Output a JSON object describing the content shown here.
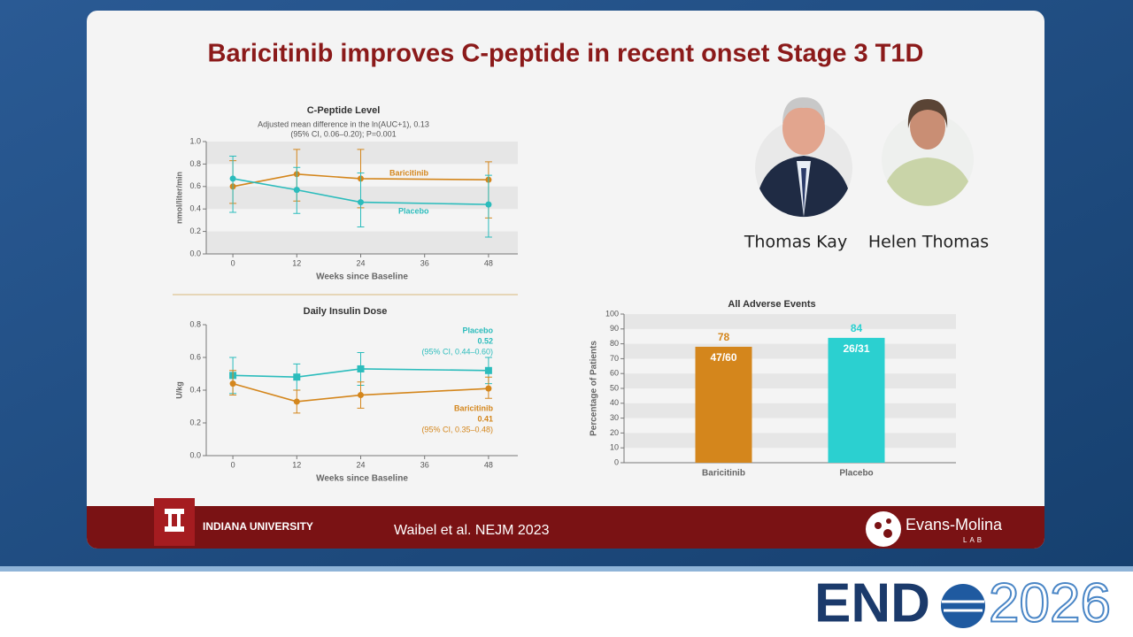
{
  "slide": {
    "title": "Baricitinib improves C-peptide in recent onset Stage 3 T1D",
    "people": [
      "Thomas Kay",
      "Helen Thomas"
    ],
    "footer": {
      "university": "INDIANA UNIVERSITY",
      "citation": "Waibel et al. NEJM 2023",
      "lab": "Evans-Molina",
      "lab_sub": "LAB"
    },
    "event": {
      "name": "END",
      "year": "2026"
    }
  },
  "chart_data": [
    {
      "type": "line",
      "title": "C-Peptide Level",
      "subtitle": [
        "Adjusted mean difference in the ln(AUC+1), 0.13",
        "(95% CI, 0.06–0.20); P=0.001"
      ],
      "xlabel": "Weeks since Baseline",
      "ylabel": "nmol/liter/min",
      "x": [
        0,
        12,
        24,
        48
      ],
      "xlim": [
        -5,
        53.5
      ],
      "xticks": [
        0,
        12,
        24,
        36,
        48
      ],
      "ylim": [
        0,
        1
      ],
      "yticks": [
        {
          "value": 0,
          "label": "0.0"
        },
        0.2,
        0.4,
        0.6,
        0.8,
        {
          "value": 1,
          "label": "1.0"
        }
      ],
      "grid": true,
      "series": [
        {
          "name": "Baricitinib",
          "color": "#d4861c",
          "marker": "circle",
          "values": [
            0.6,
            0.71,
            0.67,
            0.66
          ],
          "lower": [
            0.45,
            0.47,
            0.41,
            0.32
          ],
          "upper": [
            0.83,
            0.93,
            0.93,
            0.82
          ]
        },
        {
          "name": "Placebo",
          "color": "#2bbcbc",
          "marker": "circle",
          "values": [
            0.67,
            0.57,
            0.46,
            0.44
          ],
          "lower": [
            0.37,
            0.36,
            0.24,
            0.15
          ],
          "upper": [
            0.87,
            0.77,
            0.72,
            0.7
          ]
        }
      ]
    },
    {
      "type": "line",
      "title": "Daily Insulin Dose",
      "xlabel": "Weeks since Baseline",
      "ylabel": "U/kg",
      "x": [
        0,
        12,
        24,
        48
      ],
      "xlim": [
        -5,
        53.5
      ],
      "xticks": [
        0,
        12,
        24,
        36,
        48
      ],
      "ylim": [
        0,
        0.8
      ],
      "yticks": [
        {
          "value": 0,
          "label": "0.0"
        },
        0.2,
        0.4,
        0.6,
        0.8
      ],
      "grid": false,
      "series": [
        {
          "name": "Placebo",
          "color": "#2bbcbc",
          "marker": "square",
          "values": [
            0.49,
            0.48,
            0.53,
            0.52
          ],
          "lower": [
            0.38,
            0.4,
            0.43,
            0.44
          ],
          "upper": [
            0.6,
            0.56,
            0.63,
            0.6
          ],
          "annotation": [
            "0.52",
            "(95% CI, 0.44–0.60)"
          ]
        },
        {
          "name": "Baricitinib",
          "color": "#d4861c",
          "marker": "circle",
          "values": [
            0.44,
            0.33,
            0.37,
            0.41
          ],
          "lower": [
            0.37,
            0.26,
            0.29,
            0.35
          ],
          "upper": [
            0.52,
            0.4,
            0.45,
            0.48
          ],
          "annotation": [
            "0.41",
            "(95% CI, 0.35–0.48)"
          ]
        }
      ]
    },
    {
      "type": "bar",
      "title": "All Adverse Events",
      "ylabel": "Percentage of Patients",
      "categories": [
        "Baricitinib",
        "Placebo"
      ],
      "values": [
        78,
        84
      ],
      "counts": [
        "47/60",
        "26/31"
      ],
      "colors": [
        "#d4861c",
        "#2bd0d0"
      ],
      "ylim": [
        0,
        100
      ],
      "yticks": [
        0,
        10,
        20,
        30,
        40,
        50,
        60,
        70,
        80,
        90,
        100
      ],
      "grid": true
    }
  ]
}
